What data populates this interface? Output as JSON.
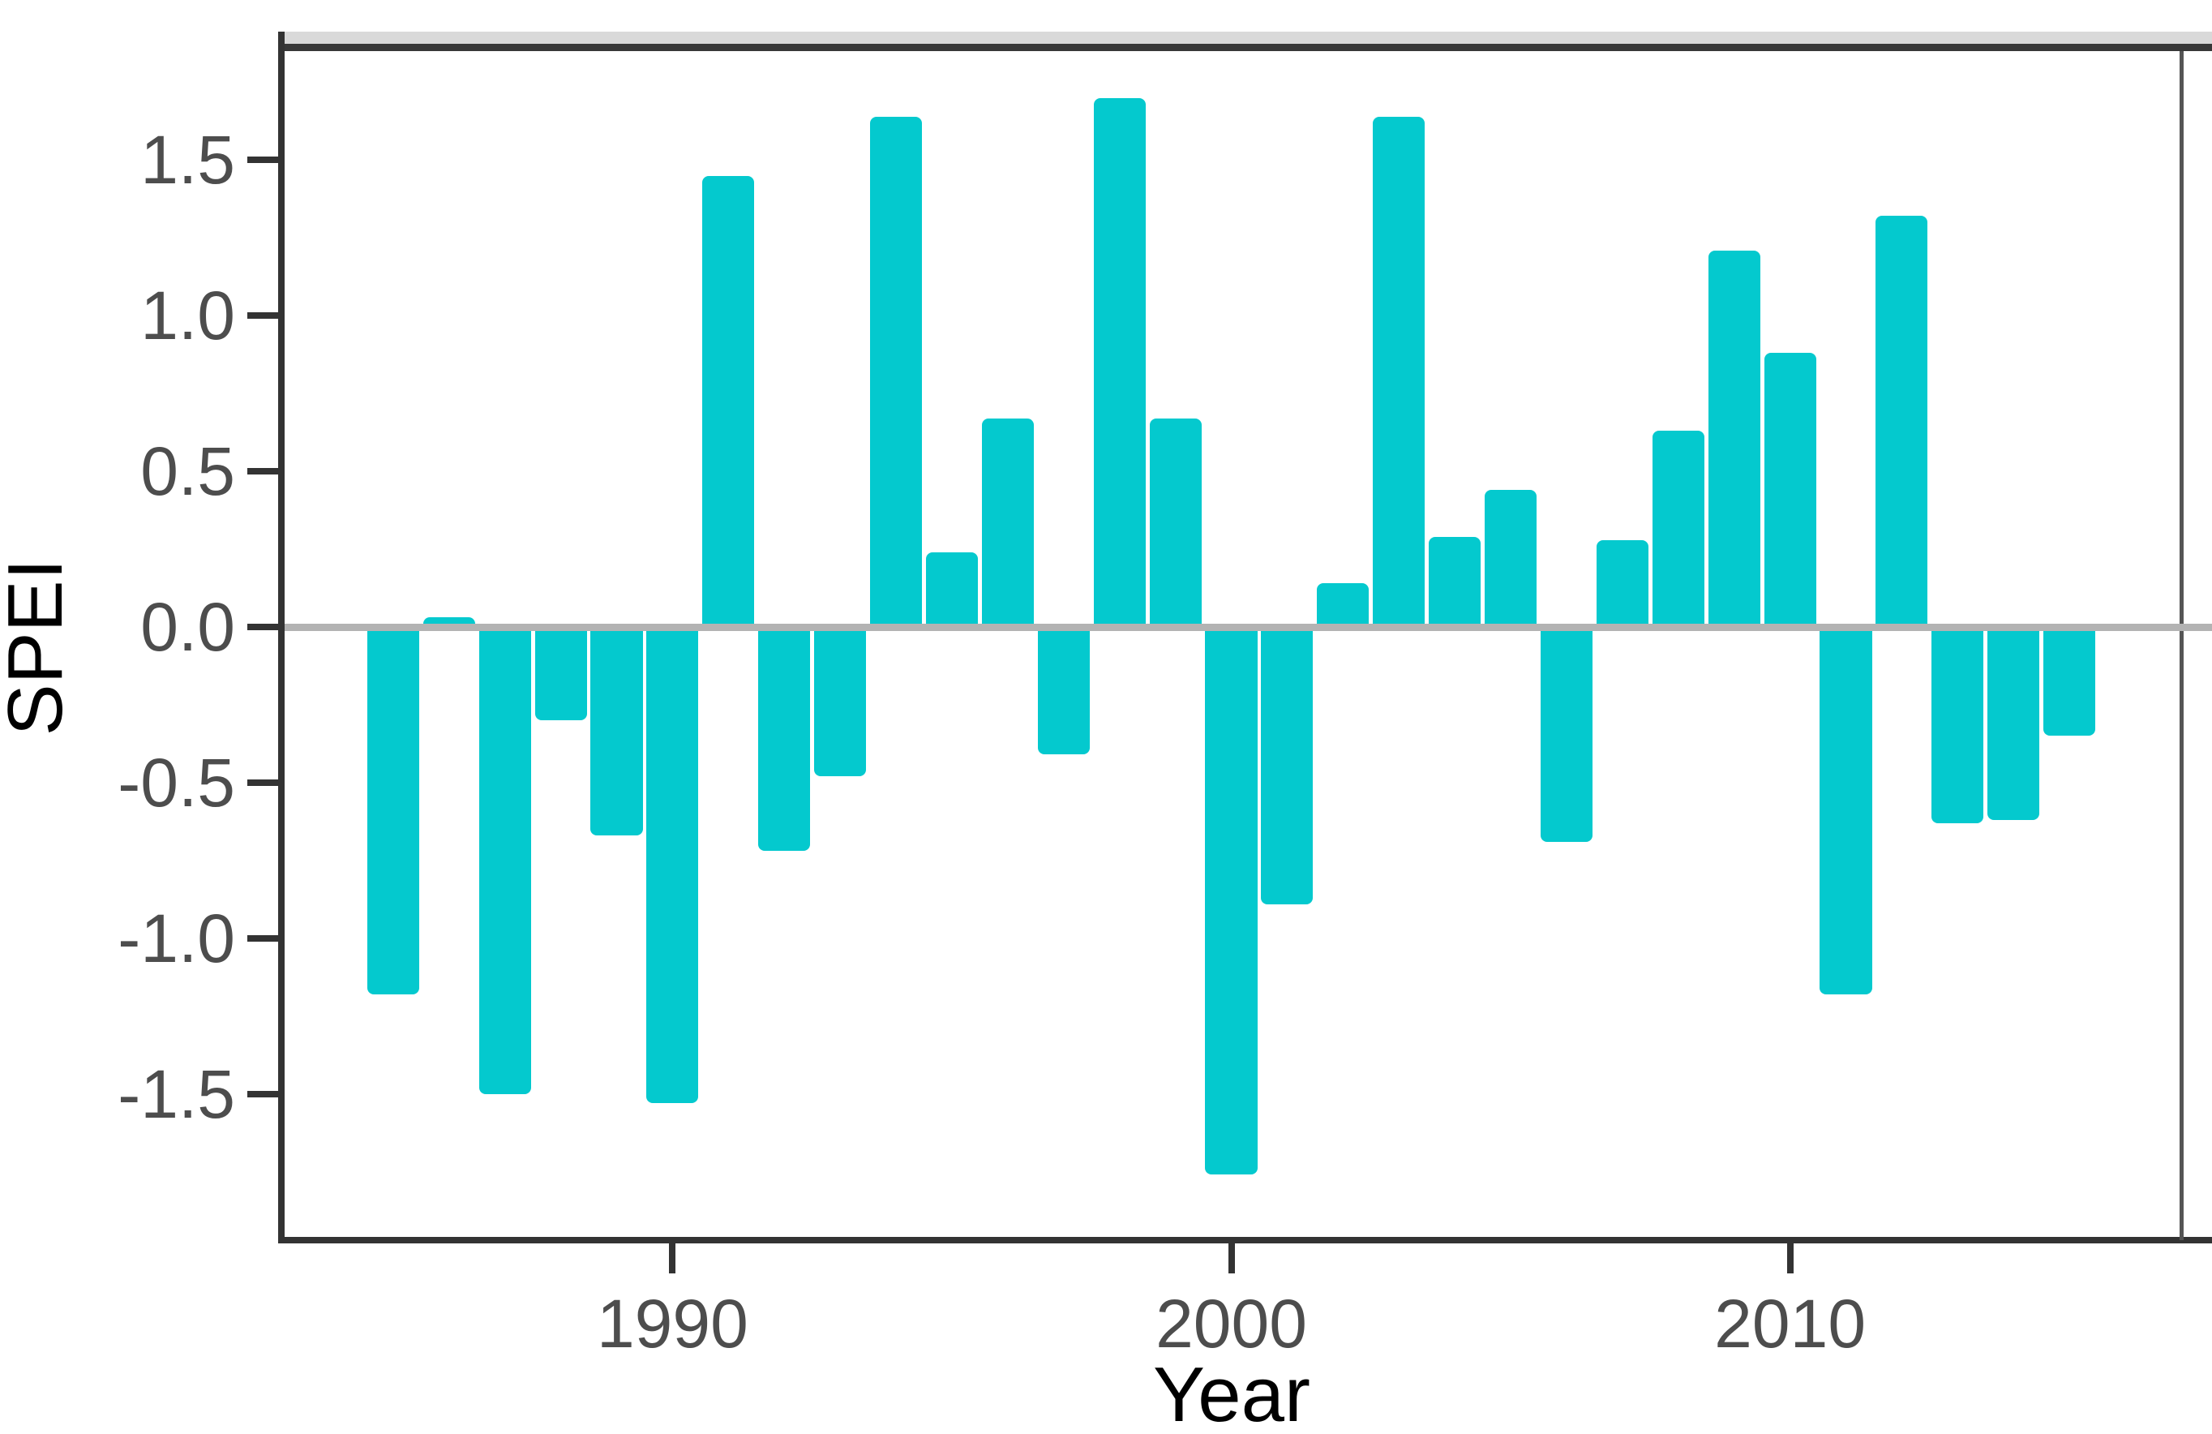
{
  "chart_data": {
    "type": "bar",
    "title": "",
    "xlabel": "Year",
    "ylabel": "SPEI",
    "categories": [
      1985,
      1986,
      1987,
      1988,
      1989,
      1990,
      1991,
      1992,
      1993,
      1994,
      1995,
      1996,
      1997,
      1998,
      1999,
      2000,
      2001,
      2002,
      2003,
      2004,
      2005,
      2006,
      2007,
      2008,
      2009,
      2010,
      2011,
      2012,
      2013,
      2014,
      2015
    ],
    "values": [
      -1.18,
      0.03,
      -1.5,
      -0.3,
      -0.67,
      -1.53,
      1.45,
      -0.72,
      -0.48,
      1.64,
      0.24,
      0.67,
      -0.41,
      1.7,
      0.67,
      -1.76,
      -0.89,
      0.14,
      1.64,
      0.29,
      0.44,
      -0.69,
      0.28,
      0.63,
      1.21,
      0.88,
      -1.18,
      1.32,
      -0.63,
      -0.62,
      -0.35
    ],
    "x_tick_labels": [
      "1990",
      "2000",
      "2010"
    ],
    "x_tick_values": [
      1990,
      2000,
      2010
    ],
    "y_tick_labels": [
      "1.5",
      "1.0",
      "0.5",
      "0.0",
      "-0.5",
      "-1.0",
      "-1.5"
    ],
    "y_tick_values": [
      1.5,
      1.0,
      0.5,
      0.0,
      -0.5,
      -1.0,
      -1.5
    ],
    "xlim": [
      1983.0,
      2017.0
    ],
    "ylim": [
      -1.97,
      1.85
    ],
    "bar_width_years": 0.93,
    "grid": false,
    "legend": null
  },
  "colors": {
    "bar": "#04C9CE",
    "zero_line": "#b3b3b3",
    "axis_line": "#333333",
    "panel_right_border": "#555555",
    "top_strip": "#d9d9d9",
    "top_strip_line": "#383838",
    "tick_label": "#4d4d4d",
    "axis_title": "#000000",
    "background": "#ffffff"
  }
}
